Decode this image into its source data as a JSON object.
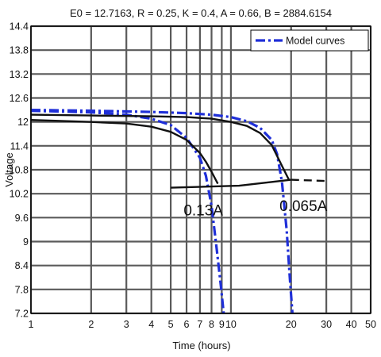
{
  "chart_data": {
    "type": "line",
    "title": "E0 = 12.7163, R = 0.25, K = 0.4, A = 0.66, B = 2884.6154",
    "xlabel": "Time (hours)",
    "ylabel": "Voltage",
    "xscale": "log",
    "xlim": [
      1,
      50
    ],
    "ylim": [
      7.2,
      14.4
    ],
    "grid": true,
    "legend_position": "top-right",
    "x_ticks": [
      1,
      2,
      3,
      4,
      5,
      6,
      7,
      8,
      9,
      10,
      20,
      30,
      40,
      50
    ],
    "x_tick_labels": [
      "1",
      "2",
      "3",
      "4",
      "5",
      "6",
      "7",
      "8",
      "9",
      "10",
      "20",
      "30",
      "40",
      "50"
    ],
    "y_ticks": [
      7.2,
      7.8,
      8.4,
      9,
      9.6,
      10.2,
      10.8,
      11.4,
      12,
      12.6,
      13.2,
      13.8,
      14.4
    ],
    "y_tick_labels": [
      "7.2",
      "7.8",
      "8.4",
      "9",
      "9.6",
      "10.2",
      "10.8",
      "11.4",
      "12",
      "12.6",
      "13.2",
      "13.8",
      "14.4"
    ],
    "series": [
      {
        "name": "Model curves",
        "style": "dash-dot",
        "color": "#1f2fd8",
        "x": [
          1,
          2,
          3,
          4,
          5,
          6,
          7,
          7.5,
          8,
          8.5,
          8.9,
          9.2
        ],
        "y": [
          12.28,
          12.24,
          12.18,
          12.08,
          11.92,
          11.6,
          11.1,
          10.65,
          9.9,
          8.8,
          7.9,
          7.2
        ]
      },
      {
        "name": "",
        "style": "dash-dot",
        "color": "#1f2fd8",
        "x": [
          1,
          2,
          4,
          6,
          8,
          10,
          12,
          14,
          16,
          17,
          18,
          19,
          19.7,
          20.3
        ],
        "y": [
          12.3,
          12.28,
          12.25,
          12.22,
          12.18,
          12.12,
          12.02,
          11.85,
          11.55,
          11.2,
          10.5,
          9.3,
          8.1,
          7.2
        ]
      },
      {
        "name": "",
        "style": "solid",
        "color": "#111111",
        "x": [
          1,
          2,
          3,
          4,
          5,
          6,
          7,
          7.5,
          8,
          8.6
        ],
        "y": [
          12.05,
          12.0,
          11.96,
          11.88,
          11.75,
          11.55,
          11.22,
          11.0,
          10.75,
          10.45
        ]
      },
      {
        "name": "",
        "style": "solid",
        "color": "#111111",
        "x": [
          1,
          2,
          4,
          6,
          8,
          10,
          12,
          14,
          16,
          18,
          19.5
        ],
        "y": [
          12.18,
          12.16,
          12.14,
          12.12,
          12.08,
          12.0,
          11.9,
          11.72,
          11.42,
          10.9,
          10.55
        ]
      },
      {
        "name": "",
        "style": "solid",
        "color": "#111111",
        "x": [
          5,
          11,
          20
        ],
        "y": [
          10.35,
          10.4,
          10.55
        ]
      },
      {
        "name": "",
        "style": "dashed",
        "color": "#111111",
        "x": [
          20,
          30
        ],
        "y": [
          10.55,
          10.52
        ]
      }
    ],
    "annotations": [
      {
        "text": "0.13A",
        "x": 5.8,
        "y": 9.9
      },
      {
        "text": "0.065A",
        "x": 17.5,
        "y": 10.0
      }
    ]
  }
}
